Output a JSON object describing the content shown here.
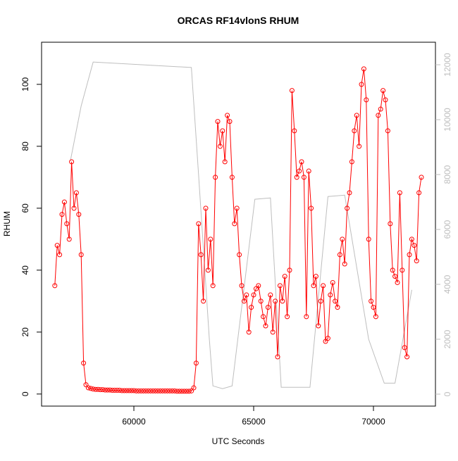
{
  "chart_data": {
    "type": "line",
    "title": "ORCAS RF14vlonS RHUM",
    "x_label": "UTC Seconds",
    "y_label": "RHUM",
    "xlim": [
      56147,
      72588
    ],
    "ylim": [
      -3.9,
      113.6
    ],
    "y2lim": [
      -436,
      12821
    ],
    "xticks": [
      60000,
      65000,
      70000
    ],
    "yticks": [
      0,
      20,
      40,
      60,
      80,
      100
    ],
    "y2ticks": [
      0,
      2000,
      4000,
      6000,
      8000,
      10000,
      12000
    ],
    "series": [
      {
        "color": "#ff0000",
        "marker": "circle",
        "x": [
          56700,
          56800,
          56900,
          57000,
          57100,
          57200,
          57300,
          57400,
          57500,
          57600,
          57700,
          57800,
          57900,
          58000,
          58100,
          58200,
          58300,
          58400,
          58500,
          58600,
          58700,
          58800,
          58900,
          59000,
          59100,
          59200,
          59300,
          59400,
          59500,
          59600,
          59700,
          59800,
          59900,
          60000,
          60100,
          60200,
          60300,
          60400,
          60500,
          60600,
          60700,
          60800,
          60900,
          61000,
          61100,
          61200,
          61300,
          61400,
          61500,
          61600,
          61700,
          61800,
          61900,
          62000,
          62100,
          62200,
          62300,
          62400,
          62500,
          62600,
          62700,
          62800,
          62900,
          63000,
          63100,
          63200,
          63300,
          63400,
          63500,
          63600,
          63700,
          63800,
          63900,
          64000,
          64100,
          64200,
          64300,
          64400,
          64500,
          64600,
          64700,
          64800,
          64900,
          65000,
          65100,
          65200,
          65300,
          65400,
          65500,
          65600,
          65700,
          65800,
          65900,
          66000,
          66100,
          66200,
          66300,
          66400,
          66500,
          66600,
          66700,
          66800,
          66900,
          67000,
          67100,
          67200,
          67300,
          67400,
          67500,
          67600,
          67700,
          67800,
          67900,
          68000,
          68100,
          68200,
          68300,
          68400,
          68500,
          68600,
          68700,
          68800,
          68900,
          69000,
          69100,
          69200,
          69300,
          69400,
          69500,
          69600,
          69700,
          69800,
          69900,
          70000,
          70100,
          70200,
          70300,
          70400,
          70500,
          70600,
          70700,
          70800,
          70900,
          71000,
          71100,
          71200,
          71300,
          71400,
          71500,
          71600,
          71700,
          71800,
          71900,
          72000
        ],
        "values": [
          35,
          48,
          45,
          58,
          62,
          55,
          50,
          75,
          60,
          65,
          58,
          45,
          10,
          3,
          2,
          1.8,
          1.6,
          1.5,
          1.5,
          1.4,
          1.4,
          1.3,
          1.3,
          1.3,
          1.2,
          1.2,
          1.2,
          1.2,
          1.1,
          1.1,
          1.1,
          1.1,
          1.1,
          1.1,
          1,
          1,
          1,
          1,
          1,
          1,
          1,
          1,
          1,
          1,
          1,
          1,
          1,
          1,
          1,
          1,
          1,
          0.9,
          0.9,
          0.9,
          0.9,
          0.9,
          0.9,
          1,
          2,
          10,
          55,
          45,
          30,
          60,
          40,
          50,
          35,
          70,
          88,
          80,
          85,
          75,
          90,
          88,
          70,
          55,
          60,
          45,
          35,
          30,
          32,
          20,
          28,
          32,
          34,
          35,
          30,
          25,
          22,
          28,
          32,
          20,
          30,
          12,
          35,
          30,
          38,
          25,
          40,
          98,
          85,
          70,
          72,
          75,
          70,
          25,
          72,
          60,
          35,
          38,
          22,
          30,
          35,
          17,
          18,
          32,
          36,
          30,
          28,
          45,
          50,
          42,
          60,
          65,
          75,
          85,
          90,
          80,
          100,
          105,
          95,
          50,
          30,
          28,
          25,
          90,
          92,
          98,
          95,
          85,
          55,
          40,
          38,
          36,
          65,
          40,
          15,
          12,
          45,
          50,
          48,
          43,
          65,
          70
        ]
      },
      {
        "color": "#bebebe",
        "axis": "y2",
        "x": [
          57350,
          57800,
          58300,
          62400,
          62700,
          63150,
          63300,
          63700,
          64100,
          65050,
          65700,
          66150,
          67350,
          68100,
          68800,
          69800,
          70450,
          70900,
          71600
        ],
        "values": [
          8500,
          10500,
          12100,
          11900,
          8000,
          2000,
          300,
          200,
          300,
          7100,
          7150,
          250,
          250,
          7200,
          7250,
          2000,
          400,
          400,
          3800
        ]
      }
    ]
  }
}
